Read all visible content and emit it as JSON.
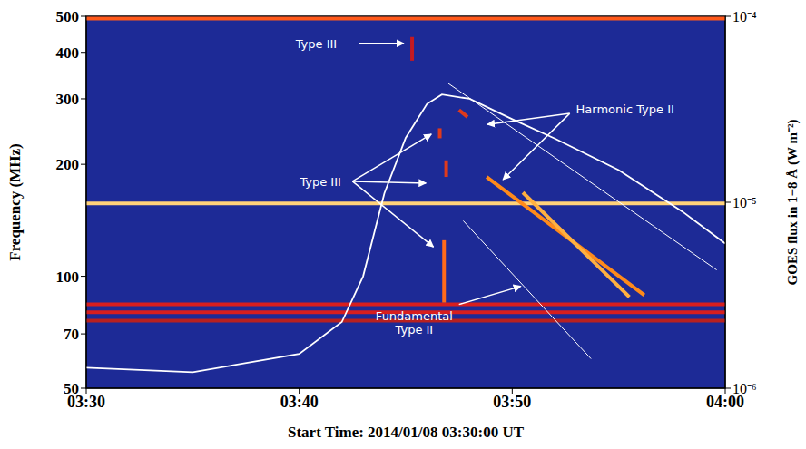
{
  "chart_data": {
    "type": "line",
    "x_label": "Start Time: 2014/01/08 03:30:00 UT",
    "y_label": "Frequency (MHz)",
    "y2_label": "GOES flux in 1−8 Å (W m⁻²)",
    "log": "y",
    "grid": false,
    "xlim": [
      210,
      240
    ],
    "xticks": [
      {
        "value": 210,
        "label": "03:30"
      },
      {
        "value": 220,
        "label": "03:40"
      },
      {
        "value": 230,
        "label": "03:50"
      },
      {
        "value": 240,
        "label": "04:00"
      }
    ],
    "ylim": [
      50,
      500
    ],
    "yticks": [
      50,
      70,
      100,
      200,
      300,
      400,
      500
    ],
    "y2lim": [
      1e-06,
      0.0001
    ],
    "y2ticks": [
      {
        "value": 1e-06,
        "label": "10⁻⁶"
      },
      {
        "value": 1e-05,
        "label": "10⁻⁵"
      },
      {
        "value": 0.0001,
        "label": "10⁻⁴"
      }
    ],
    "series": [
      {
        "color": "#ff5a1a",
        "line_style": "thick",
        "x": [
          210,
          240
        ],
        "values": [
          493,
          493
        ]
      },
      {
        "color": "#ffd27a",
        "line_style": "thick",
        "x": [
          210,
          240
        ],
        "values": [
          157,
          157
        ]
      },
      {
        "color": "#d81e1e",
        "line_style": "thick",
        "x": [
          210,
          240
        ],
        "values": [
          84,
          84
        ]
      },
      {
        "color": "#d81e1e",
        "line_style": "thick",
        "x": [
          210,
          240
        ],
        "values": [
          80,
          80
        ]
      },
      {
        "color": "#b82020",
        "line_style": "thick",
        "x": [
          210,
          240
        ],
        "values": [
          76,
          76
        ]
      },
      {
        "color": "#c41a22",
        "line_style": "thick",
        "x": [
          225.3,
          225.3
        ],
        "values": [
          380,
          440
        ]
      },
      {
        "color": "#e03a1c",
        "line_style": "thick",
        "x": [
          226.6,
          226.6
        ],
        "values": [
          235,
          250
        ]
      },
      {
        "color": "#e03a1c",
        "line_style": "thick",
        "x": [
          226.9,
          226.9
        ],
        "values": [
          185,
          205
        ]
      },
      {
        "color": "#ff6a1a",
        "line_style": "thick",
        "x": [
          226.8,
          226.8
        ],
        "values": [
          85,
          125
        ]
      },
      {
        "color": "#e03a1c",
        "line_style": "thick",
        "x": [
          227.5,
          227.9
        ],
        "values": [
          280,
          268
        ]
      },
      {
        "color": "#ff8a1a",
        "line_style": "thick",
        "x": [
          228.8,
          236.2
        ],
        "values": [
          185,
          89
        ]
      },
      {
        "color": "#ffb040",
        "line_style": "thick",
        "x": [
          230.5,
          235.5
        ],
        "values": [
          168,
          88
        ]
      },
      {
        "color": "#ffffff",
        "line_style": "thin",
        "x": [
          227,
          239.6
        ],
        "values": [
          330,
          104
        ]
      },
      {
        "color": "#ffffff",
        "line_style": "thin",
        "x": [
          227.7,
          233.7
        ],
        "values": [
          141,
          60
        ]
      },
      {
        "color": "#ffffff",
        "line_style": "solid",
        "axis": "y2",
        "x": [
          210,
          215,
          220,
          222,
          223,
          224,
          225,
          226,
          226.7,
          228,
          230,
          232,
          235,
          238,
          240
        ],
        "values": [
          1.29e-06,
          1.22e-06,
          1.53e-06,
          2.27e-06,
          4e-06,
          1.12e-05,
          2.22e-05,
          3.38e-05,
          3.8e-05,
          3.6e-05,
          2.8e-05,
          2.2e-05,
          1.49e-05,
          8.9e-06,
          6e-06
        ]
      }
    ],
    "annotations": [
      {
        "text": "Type III",
        "x": 220.8,
        "y": 423,
        "arrows": [
          {
            "from": [
              222.8,
              423
            ],
            "to": [
              224.9,
              423
            ]
          }
        ]
      },
      {
        "text": "Type III",
        "x": 221.0,
        "y": 180,
        "arrows": [
          {
            "from": [
              222.5,
              180
            ],
            "to": [
              226.2,
              241
            ]
          },
          {
            "from": [
              222.5,
              180
            ],
            "to": [
              225.95,
              178
            ]
          },
          {
            "from": [
              222.5,
              180
            ],
            "to": [
              226.3,
              120
            ]
          }
        ]
      },
      {
        "text": "Harmonic Type II",
        "x": 235.3,
        "y": 282,
        "arrows": [
          {
            "from": [
              232.7,
              274
            ],
            "to": [
              228.84,
              256
            ]
          },
          {
            "from": [
              232.7,
              274
            ],
            "to": [
              229.57,
              182
            ]
          }
        ]
      },
      {
        "text": "Fundamental Type II",
        "x": 225.4,
        "y": 75,
        "arrows": [
          {
            "from": [
              227.5,
              84
            ],
            "to": [
              230.4,
              94
            ]
          }
        ]
      }
    ]
  }
}
